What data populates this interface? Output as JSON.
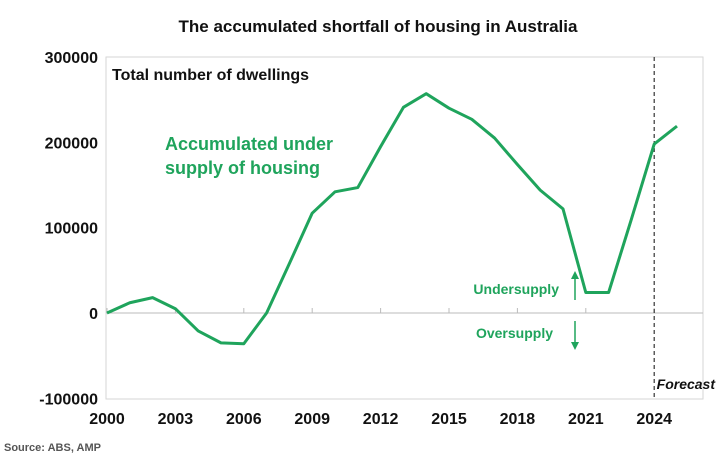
{
  "chart_data": {
    "type": "line",
    "title": "The accumulated shortfall of housing in Australia",
    "subtitle": "Total number of dwellings",
    "ylim": [
      -100000,
      300000
    ],
    "yticks": [
      "-100000",
      "0",
      "100000",
      "200000",
      "300000"
    ],
    "xlim": [
      2000,
      2026
    ],
    "xticks": [
      "2000",
      "2003",
      "2006",
      "2009",
      "2012",
      "2015",
      "2018",
      "2021",
      "2024"
    ],
    "grid": false,
    "series": [
      {
        "x": [
          2000,
          2001,
          2002,
          2003,
          2004,
          2005,
          2006,
          2007,
          2008,
          2009,
          2010,
          2011,
          2012,
          2013,
          2014,
          2015,
          2016,
          2017,
          2018,
          2019,
          2020,
          2021,
          2022,
          2023,
          2024,
          2025
        ],
        "y": [
          0,
          12000,
          18000,
          5000,
          -21000,
          -35000,
          -36000,
          0,
          58000,
          117000,
          142000,
          147000,
          195000,
          241000,
          257000,
          240000,
          227000,
          205000,
          174000,
          144000,
          122000,
          24000,
          24000,
          110000,
          198000,
          219000
        ],
        "color": "#1fa45c"
      }
    ],
    "annotations": {
      "series_label": [
        "Accumulated under",
        "supply of housing"
      ],
      "undersupply": "Undersupply",
      "oversupply": "Oversupply",
      "forecast": "Forecast",
      "forecast_start": 2024
    },
    "source": "Source: ABS, AMP"
  }
}
